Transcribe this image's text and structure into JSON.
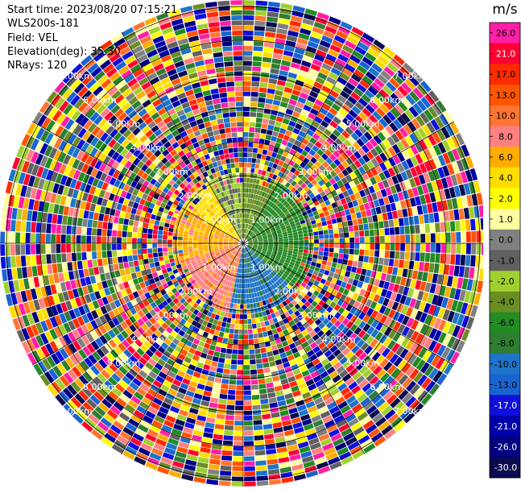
{
  "info": {
    "start_time": "Start time: 2023/08/20 07:15:21",
    "instrument": "WLS200s-181",
    "field": "Field: VEL",
    "elevation": "Elevation(deg): 35.30",
    "nrays": "NRays: 120"
  },
  "chart_data": {
    "type": "heatmap",
    "projection": "polar-ppi",
    "field": "VEL",
    "units": "m/s",
    "nrays": 120,
    "range_rings_km": [
      1,
      2,
      3,
      4,
      5,
      6,
      7
    ],
    "ring_labels": [
      "1.00km",
      "2.00km",
      "3.00km",
      "4.00km",
      "5.00km",
      "6.00km",
      "7.00km"
    ],
    "max_range_km": 7.2,
    "colorbar": {
      "title": "m/s",
      "ticks": [
        "26.0",
        "21.0",
        "17.0",
        "13.0",
        "10.0",
        "8.0",
        "6.0",
        "4.0",
        "2.0",
        "1.0",
        "0.0",
        "-1.0",
        "-2.0",
        "-4.0",
        "-6.0",
        "-8.0",
        "-10.0",
        "-13.0",
        "-17.0",
        "-21.0",
        "-26.0",
        "-30.0"
      ],
      "colors": [
        "#ff1ea6",
        "#ff0033",
        "#ff2a00",
        "#ff5400",
        "#ff7430",
        "#ff8080",
        "#ffac00",
        "#ffdd00",
        "#ffff00",
        "#fffea0",
        "#808080",
        "#606060",
        "#a0d030",
        "#6b8e23",
        "#228b22",
        "#2e7d32",
        "#1e74c8",
        "#1a64d2",
        "#1010dc",
        "#0000aa",
        "#000080",
        "#0b0b50"
      ]
    },
    "coherent_region": {
      "outer_radius_km": 2.0,
      "sectors": [
        {
          "from_deg": 190,
          "to_deg": 255,
          "value_ms": 8.0
        },
        {
          "from_deg": 255,
          "to_deg": 300,
          "value_ms": 6.0
        },
        {
          "from_deg": 300,
          "to_deg": 330,
          "value_ms": 4.0
        },
        {
          "from_deg": 330,
          "to_deg": 360,
          "value_ms": -2.0
        },
        {
          "from_deg": 0,
          "to_deg": 30,
          "value_ms": -4.0
        },
        {
          "from_deg": 30,
          "to_deg": 70,
          "value_ms": -6.0
        },
        {
          "from_deg": 70,
          "to_deg": 130,
          "value_ms": -6.0
        },
        {
          "from_deg": 130,
          "to_deg": 190,
          "value_ms": -10.0
        }
      ]
    }
  }
}
